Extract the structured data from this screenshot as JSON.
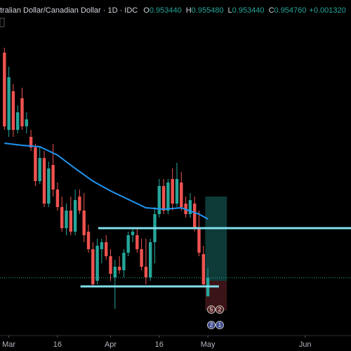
{
  "chart_data": {
    "type": "candlestick",
    "title": "tralian Dollar/Canadian Dollar · 1D · IDC",
    "header_ohlc": [
      {
        "key": "O",
        "text": "0.953440"
      },
      {
        "key": "H",
        "text": "0.955480"
      },
      {
        "key": "L",
        "text": "0.953440"
      },
      {
        "key": "C",
        "text": "0.954760"
      }
    ],
    "change": "+0.001320",
    "categories": [
      null,
      null,
      null,
      null,
      null,
      null,
      null,
      null,
      null,
      null,
      null,
      null,
      null,
      null,
      null,
      null,
      null,
      null,
      null,
      null,
      null,
      null,
      null,
      null,
      null,
      null,
      null,
      null,
      null,
      null,
      null,
      null,
      null,
      null,
      null,
      null,
      null,
      null,
      null,
      null,
      null,
      null,
      null,
      null,
      null,
      null,
      null
    ],
    "open": [
      0.9708,
      0.9653,
      0.96805,
      0.9653,
      0.96755,
      0.96555,
      0.9648,
      0.96405,
      0.96165,
      0.9633,
      0.96005,
      0.9628,
      0.96105,
      0.9598,
      0.9583,
      0.95955,
      0.95805,
      0.96055,
      0.95955,
      0.95805,
      0.9568,
      0.95455,
      0.9568,
      0.9573,
      0.9563,
      0.9548,
      0.95555,
      0.9553,
      0.95655,
      0.9578,
      0.9578,
      0.9568,
      0.95555,
      0.9548,
      0.9573,
      0.9593,
      0.9613,
      0.95955,
      0.9618,
      0.96005,
      0.96155,
      0.96005,
      0.9593,
      0.96005,
      0.9583,
      0.95645,
      0.95344
    ],
    "high": [
      0.97115,
      0.9698,
      0.96855,
      0.96705,
      0.9683,
      0.96655,
      0.9653,
      0.9643,
      0.96405,
      0.9638,
      0.96305,
      0.9643,
      0.96155,
      0.96055,
      0.96005,
      0.96055,
      0.96105,
      0.96105,
      0.9608,
      0.95855,
      0.9573,
      0.95755,
      0.95755,
      0.9578,
      0.9568,
      0.95605,
      0.9563,
      0.9568,
      0.95805,
      0.9583,
      0.9583,
      0.95755,
      0.95755,
      0.95755,
      0.9598,
      0.9618,
      0.9618,
      0.9618,
      0.96255,
      0.96295,
      0.9623,
      0.96055,
      0.9608,
      0.96055,
      0.95955,
      0.95705,
      0.95548
    ],
    "low": [
      0.9653,
      0.9648,
      0.9648,
      0.96505,
      0.9653,
      0.96505,
      0.9638,
      0.9613,
      0.96145,
      0.9598,
      0.9598,
      0.96055,
      0.95955,
      0.95805,
      0.9578,
      0.9578,
      0.9578,
      0.9593,
      0.9573,
      0.95655,
      0.95415,
      0.9543,
      0.9558,
      0.95605,
      0.95455,
      0.95255,
      0.95505,
      0.9548,
      0.9563,
      0.9573,
      0.95655,
      0.9553,
      0.9543,
      0.95455,
      0.9558,
      0.95905,
      0.9593,
      0.9593,
      0.95955,
      0.9598,
      0.95955,
      0.95905,
      0.95905,
      0.95805,
      0.9563,
      0.95415,
      0.95344
    ],
    "close": [
      0.96555,
      0.96905,
      0.9653,
      0.96655,
      0.96555,
      0.96605,
      0.96405,
      0.96165,
      0.9633,
      0.96005,
      0.96255,
      0.96105,
      0.9598,
      0.9583,
      0.95955,
      0.95805,
      0.9603,
      0.95955,
      0.9578,
      0.9568,
      0.9543,
      0.95705,
      0.9573,
      0.9563,
      0.95505,
      0.95555,
      0.9553,
      0.95655,
      0.9578,
      0.95805,
      0.9568,
      0.95555,
      0.9548,
      0.9573,
      0.9593,
      0.9613,
      0.95955,
      0.96155,
      0.96005,
      0.9618,
      0.9598,
      0.9593,
      0.9603,
      0.9583,
      0.95655,
      0.9543,
      0.95476
    ],
    "up_color": "#26a69a",
    "down_color": "#ef5350",
    "xlim": [
      -1,
      78
    ],
    "ylim": [
      0.95065,
      0.97455
    ],
    "xticks": [
      {
        "value": 1,
        "label": "Mar"
      },
      {
        "value": 12,
        "label": "16"
      },
      {
        "value": 24,
        "label": "Apr"
      },
      {
        "value": 35,
        "label": "16"
      },
      {
        "value": 46,
        "label": "May"
      },
      {
        "value": 68,
        "label": "Jun"
      }
    ],
    "moving_average": {
      "color": "#2196f3",
      "x": [
        0,
        4,
        8,
        12,
        16,
        20,
        24,
        28,
        32,
        36,
        40,
        44,
        46
      ],
      "values": [
        0.96435,
        0.9642,
        0.9641,
        0.9635,
        0.96255,
        0.96165,
        0.96095,
        0.96035,
        0.95975,
        0.95965,
        0.95975,
        0.9593,
        0.95895
      ]
    },
    "levels": [
      {
        "value": 0.9583,
        "x": [
          21.2,
          78.5
        ],
        "color": "#80deea"
      },
      {
        "value": 0.95415,
        "x": [
          17.2,
          48.5
        ],
        "color": "#80deea"
      }
    ],
    "position": {
      "x": [
        45.4,
        50.3
      ],
      "target": 0.96055,
      "entry": 0.95455,
      "stop": 0.95245
    },
    "events": [
      [
        "5",
        "2"
      ],
      [
        "2",
        "1"
      ]
    ]
  }
}
